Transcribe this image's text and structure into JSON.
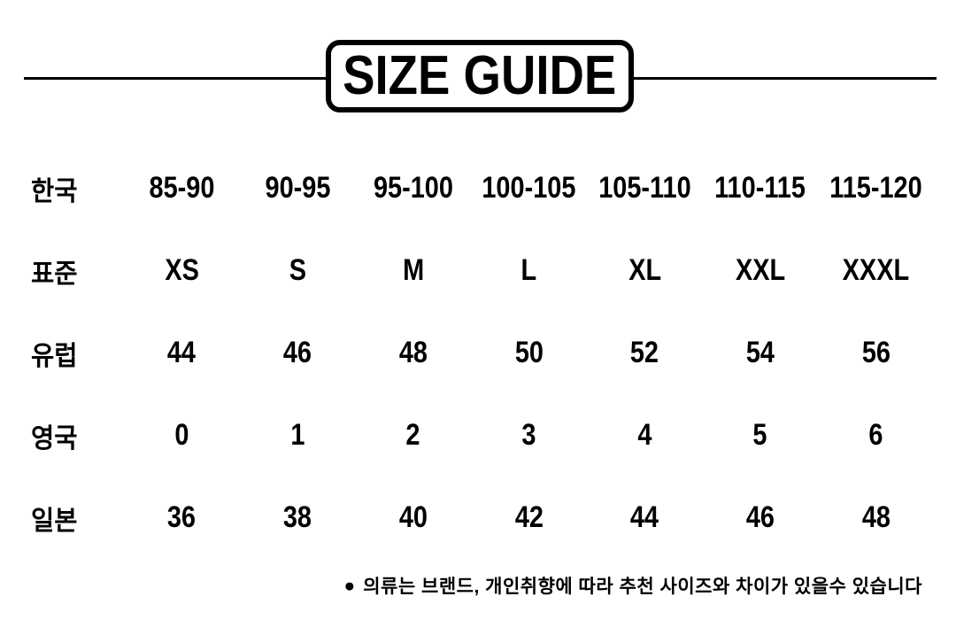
{
  "colors": {
    "background": "#ffffff",
    "text": "#000000"
  },
  "header": {
    "title": "SIZE GUIDE"
  },
  "chart_data": {
    "type": "table",
    "title": "SIZE GUIDE",
    "row_headers": [
      "한국",
      "표준",
      "유럽",
      "영국",
      "일본"
    ],
    "rows": [
      [
        "85-90",
        "90-95",
        "95-100",
        "100-105",
        "105-110",
        "110-115",
        "115-120"
      ],
      [
        "XS",
        "S",
        "M",
        "L",
        "XL",
        "XXL",
        "XXXL"
      ],
      [
        "44",
        "46",
        "48",
        "50",
        "52",
        "54",
        "56"
      ],
      [
        "0",
        "1",
        "2",
        "3",
        "4",
        "5",
        "6"
      ],
      [
        "36",
        "38",
        "40",
        "42",
        "44",
        "46",
        "48"
      ]
    ],
    "note": "의류는 브랜드, 개인취향에 따라 추천 사이즈와 차이가 있을수 있습니다"
  },
  "footer": {
    "bullet": "●",
    "note": "의류는 브랜드, 개인취향에 따라 추천 사이즈와 차이가 있을수 있습니다"
  }
}
